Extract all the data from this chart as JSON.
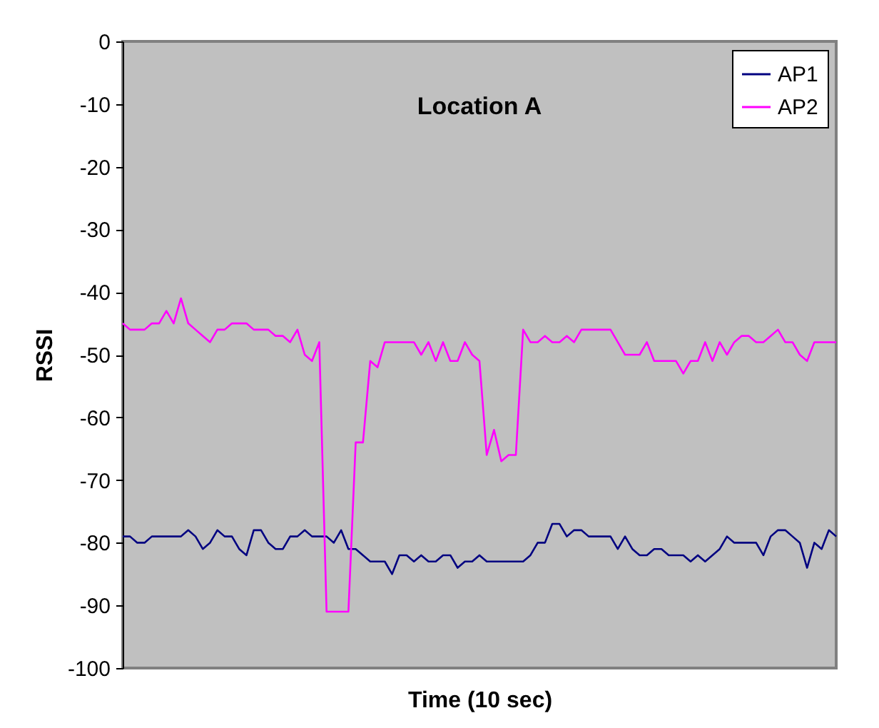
{
  "chart_data": {
    "type": "line",
    "title": "Location A",
    "xlabel": "Time (10 sec)",
    "ylabel": "RSSI",
    "categories": [
      null,
      null,
      null,
      null,
      null,
      null,
      null,
      null,
      null,
      null,
      null,
      null,
      null,
      null,
      null,
      null,
      null,
      null,
      null,
      null,
      null,
      null,
      null,
      null,
      null,
      null,
      null,
      null,
      null,
      null,
      null,
      null,
      null,
      null,
      null,
      null,
      null,
      null,
      null,
      null,
      null,
      null,
      null,
      null,
      null,
      null,
      null,
      null,
      null,
      null,
      null,
      null,
      null,
      null,
      null,
      null,
      null,
      null,
      null,
      null,
      null,
      null,
      null,
      null,
      null,
      null,
      null,
      null,
      null,
      null,
      null,
      null,
      null,
      null,
      null,
      null,
      null,
      null,
      null,
      null,
      null,
      null,
      null,
      null,
      null,
      null,
      null,
      null,
      null,
      null,
      null,
      null,
      null,
      null,
      null,
      null,
      null,
      null,
      null
    ],
    "series": [
      {
        "name": "AP1",
        "color": "#000080",
        "values": [
          -79,
          -79,
          -80,
          -80,
          -79,
          -79,
          -79,
          -79,
          -79,
          -78,
          -79,
          -81,
          -80,
          -78,
          -79,
          -79,
          -81,
          -82,
          -78,
          -78,
          -80,
          -81,
          -81,
          -79,
          -79,
          -78,
          -79,
          -79,
          -79,
          -80,
          -78,
          -81,
          -81,
          -82,
          -83,
          -83,
          -83,
          -85,
          -82,
          -82,
          -83,
          -82,
          -83,
          -83,
          -82,
          -82,
          -84,
          -83,
          -83,
          -82,
          -83,
          -83,
          -83,
          -83,
          -83,
          -83,
          -82,
          -80,
          -80,
          -77,
          -77,
          -79,
          -78,
          -78,
          -79,
          -79,
          -79,
          -79,
          -81,
          -79,
          -81,
          -82,
          -82,
          -81,
          -81,
          -82,
          -82,
          -82,
          -83,
          -82,
          -83,
          -82,
          -81,
          -79,
          -80,
          -80,
          -80,
          -80,
          -82,
          -79,
          -78,
          -78,
          -79,
          -80,
          -84,
          -80,
          -81,
          -78,
          -79
        ]
      },
      {
        "name": "AP2",
        "color": "#ff00ff",
        "values": [
          -45,
          -46,
          -46,
          -46,
          -45,
          -45,
          -43,
          -45,
          -41,
          -45,
          -46,
          -47,
          -48,
          -46,
          -46,
          -45,
          -45,
          -45,
          -46,
          -46,
          -46,
          -47,
          -47,
          -48,
          -46,
          -50,
          -51,
          -48,
          -91,
          -91,
          -91,
          -91,
          -64,
          -64,
          -51,
          -52,
          -48,
          -48,
          -48,
          -48,
          -48,
          -50,
          -48,
          -51,
          -48,
          -51,
          -51,
          -48,
          -50,
          -51,
          -66,
          -62,
          -67,
          -66,
          -66,
          -46,
          -48,
          -48,
          -47,
          -48,
          -48,
          -47,
          -48,
          -46,
          -46,
          -46,
          -46,
          -46,
          -48,
          -50,
          -50,
          -50,
          -48,
          -51,
          -51,
          -51,
          -51,
          -53,
          -51,
          -51,
          -48,
          -51,
          -48,
          -50,
          -48,
          -47,
          -47,
          -48,
          -48,
          -47,
          -46,
          -48,
          -48,
          -50,
          -51,
          -48,
          -48,
          -48,
          -48
        ]
      }
    ],
    "ylim": [
      -100,
      0
    ],
    "yticks": [
      -100,
      -90,
      -80,
      -70,
      -60,
      -50,
      -40,
      -30,
      -20,
      -10,
      0
    ],
    "grid": false,
    "legend": "top right"
  }
}
